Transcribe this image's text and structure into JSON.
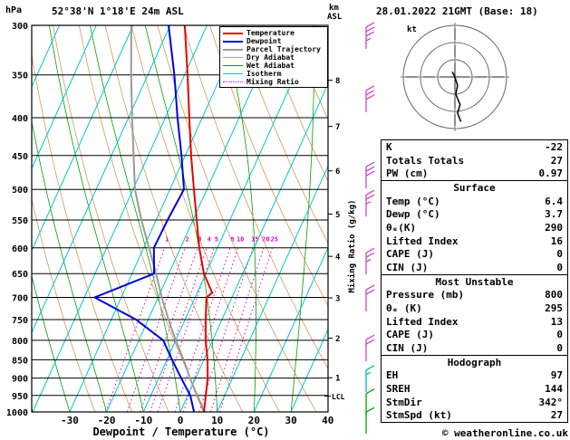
{
  "header": {
    "station": "52°38'N 1°18'E 24m ASL",
    "datetime": "28.01.2022 21GMT (Base: 18)"
  },
  "labels": {
    "pressure_unit": "hPa",
    "km": "km",
    "asl": "ASL",
    "mixing_axis": "Mixing Ratio (g/kg)",
    "xlabel": "Dewpoint / Temperature (°C)",
    "lcl": "LCL",
    "kt": "kt"
  },
  "footer": {
    "copyright": "© weatheronline.co.uk"
  },
  "legend": {
    "items": [
      {
        "label": "Temperature",
        "color": "#e80000",
        "thick": true,
        "dash": false
      },
      {
        "label": "Dewpoint",
        "color": "#0000dd",
        "thick": true,
        "dash": false
      },
      {
        "label": "Parcel Trajectory",
        "color": "#9a9a9a",
        "thick": true,
        "dash": false
      },
      {
        "label": "Dry Adiabat",
        "color": "#d09a5a",
        "thick": false,
        "dash": false
      },
      {
        "label": "Wet Adiabat",
        "color": "#00a000",
        "thick": false,
        "dash": false
      },
      {
        "label": "Isotherm",
        "color": "#00c8c8",
        "thick": false,
        "dash": false
      },
      {
        "label": "Mixing Ratio",
        "color": "#dd00dd",
        "thick": false,
        "dash": true
      }
    ]
  },
  "panel": {
    "sections": [
      {
        "header": null,
        "rows": [
          [
            "K",
            "-22"
          ],
          [
            "Totals Totals",
            "27"
          ],
          [
            "PW (cm)",
            "0.97"
          ]
        ]
      },
      {
        "header": "Surface",
        "rows": [
          [
            "Temp (°C)",
            "6.4"
          ],
          [
            "Dewp (°C)",
            "3.7"
          ],
          [
            "θₑ(K)",
            "290"
          ],
          [
            "Lifted Index",
            "16"
          ],
          [
            "CAPE (J)",
            "0"
          ],
          [
            "CIN (J)",
            "0"
          ]
        ]
      },
      {
        "header": "Most Unstable",
        "rows": [
          [
            "Pressure (mb)",
            "800"
          ],
          [
            "θₑ (K)",
            "295"
          ],
          [
            "Lifted Index",
            "13"
          ],
          [
            "CAPE (J)",
            "0"
          ],
          [
            "CIN (J)",
            "0"
          ]
        ]
      },
      {
        "header": "Hodograph",
        "rows": [
          [
            "EH",
            "97"
          ],
          [
            "SREH",
            "144"
          ],
          [
            "StmDir",
            "342°"
          ],
          [
            "StmSpd (kt)",
            "27"
          ]
        ]
      }
    ]
  },
  "chart_data": {
    "type": "skewt-log-p",
    "pressure_axis": {
      "label": "hPa",
      "ticks": [
        300,
        350,
        400,
        450,
        500,
        550,
        600,
        650,
        700,
        750,
        800,
        850,
        900,
        950,
        1000
      ],
      "log": true
    },
    "temp_axis": {
      "label": "Dewpoint / Temperature (°C)",
      "ticks": [
        -30,
        -20,
        -10,
        0,
        10,
        20,
        30,
        40
      ]
    },
    "km_points": [
      [
        1,
        899
      ],
      [
        2,
        795
      ],
      [
        3,
        701
      ],
      [
        4,
        616
      ],
      [
        5,
        540
      ],
      [
        6,
        472
      ],
      [
        7,
        411
      ],
      [
        8,
        356
      ]
    ],
    "lcl_pressure": 952,
    "mixing_ratio_values": [
      1,
      2,
      3,
      4,
      5,
      8,
      10,
      15,
      20,
      25
    ],
    "colors": {
      "temperature": "#e80000",
      "dewpoint": "#0000dd",
      "parcel": "#9a9a9a",
      "dry_adiabat": "#d09a5a",
      "wet_adiabat": "#00a000",
      "isotherm": "#00c8c8",
      "mixing": "#dd00dd",
      "isobar": "#000000"
    },
    "temperature_profile": [
      [
        1000,
        6.4
      ],
      [
        950,
        4.9
      ],
      [
        900,
        3.3
      ],
      [
        850,
        1.0
      ],
      [
        800,
        -1.9
      ],
      [
        750,
        -4.4
      ],
      [
        700,
        -6.9
      ],
      [
        690,
        -5.9
      ],
      [
        650,
        -10.5
      ],
      [
        600,
        -14.9
      ],
      [
        550,
        -19.0
      ],
      [
        500,
        -23.5
      ],
      [
        450,
        -28.4
      ],
      [
        400,
        -33.5
      ],
      [
        350,
        -39.2
      ],
      [
        300,
        -46.0
      ]
    ],
    "dewpoint_profile": [
      [
        1000,
        3.7
      ],
      [
        950,
        0.7
      ],
      [
        900,
        -3.9
      ],
      [
        850,
        -8.6
      ],
      [
        800,
        -13.4
      ],
      [
        750,
        -23.3
      ],
      [
        700,
        -37.2
      ],
      [
        650,
        -24.0
      ],
      [
        600,
        -27.2
      ],
      [
        550,
        -26.9
      ],
      [
        500,
        -26.2
      ],
      [
        450,
        -31.0
      ],
      [
        400,
        -36.7
      ],
      [
        350,
        -42.8
      ],
      [
        300,
        -50.4
      ]
    ],
    "parcel_profile": [
      [
        1000,
        6.4
      ],
      [
        950,
        2.5
      ],
      [
        900,
        -1.5
      ],
      [
        850,
        -5.5
      ],
      [
        800,
        -10.0
      ],
      [
        750,
        -14.5
      ],
      [
        700,
        -19.0
      ],
      [
        650,
        -23.5
      ],
      [
        600,
        -28.5
      ],
      [
        550,
        -34.0
      ],
      [
        500,
        -39.5
      ],
      [
        450,
        -44.0
      ],
      [
        400,
        -49.0
      ],
      [
        350,
        -54.5
      ],
      [
        300,
        -60.5
      ]
    ],
    "wind_barbs": [
      {
        "p": 312,
        "speed_kt": 35,
        "color": "#cc44cc"
      },
      {
        "p": 380,
        "speed_kt": 30,
        "color": "#cc44cc"
      },
      {
        "p": 482,
        "speed_kt": 30,
        "color": "#cc44cc"
      },
      {
        "p": 526,
        "speed_kt": 25,
        "color": "#cc44cc"
      },
      {
        "p": 630,
        "speed_kt": 25,
        "color": "#cc44cc"
      },
      {
        "p": 707,
        "speed_kt": 20,
        "color": "#cc44cc"
      },
      {
        "p": 826,
        "speed_kt": 20,
        "color": "#cc44cc"
      },
      {
        "p": 908,
        "speed_kt": 15,
        "color": "#00b8b8"
      },
      {
        "p": 977,
        "speed_kt": 10,
        "color": "#00a800"
      },
      {
        "p": 1035,
        "speed_kt": 10,
        "color": "#00a800"
      }
    ],
    "hodograph": {
      "unit_label": "kt",
      "radii_kt": [
        10,
        20,
        30
      ],
      "trace_kt": [
        [
          -1.5,
          3
        ],
        [
          0,
          0
        ],
        [
          1.5,
          -5
        ],
        [
          0.5,
          -10
        ],
        [
          3,
          -16
        ],
        [
          1.5,
          -21
        ],
        [
          3.5,
          -26
        ]
      ]
    }
  }
}
